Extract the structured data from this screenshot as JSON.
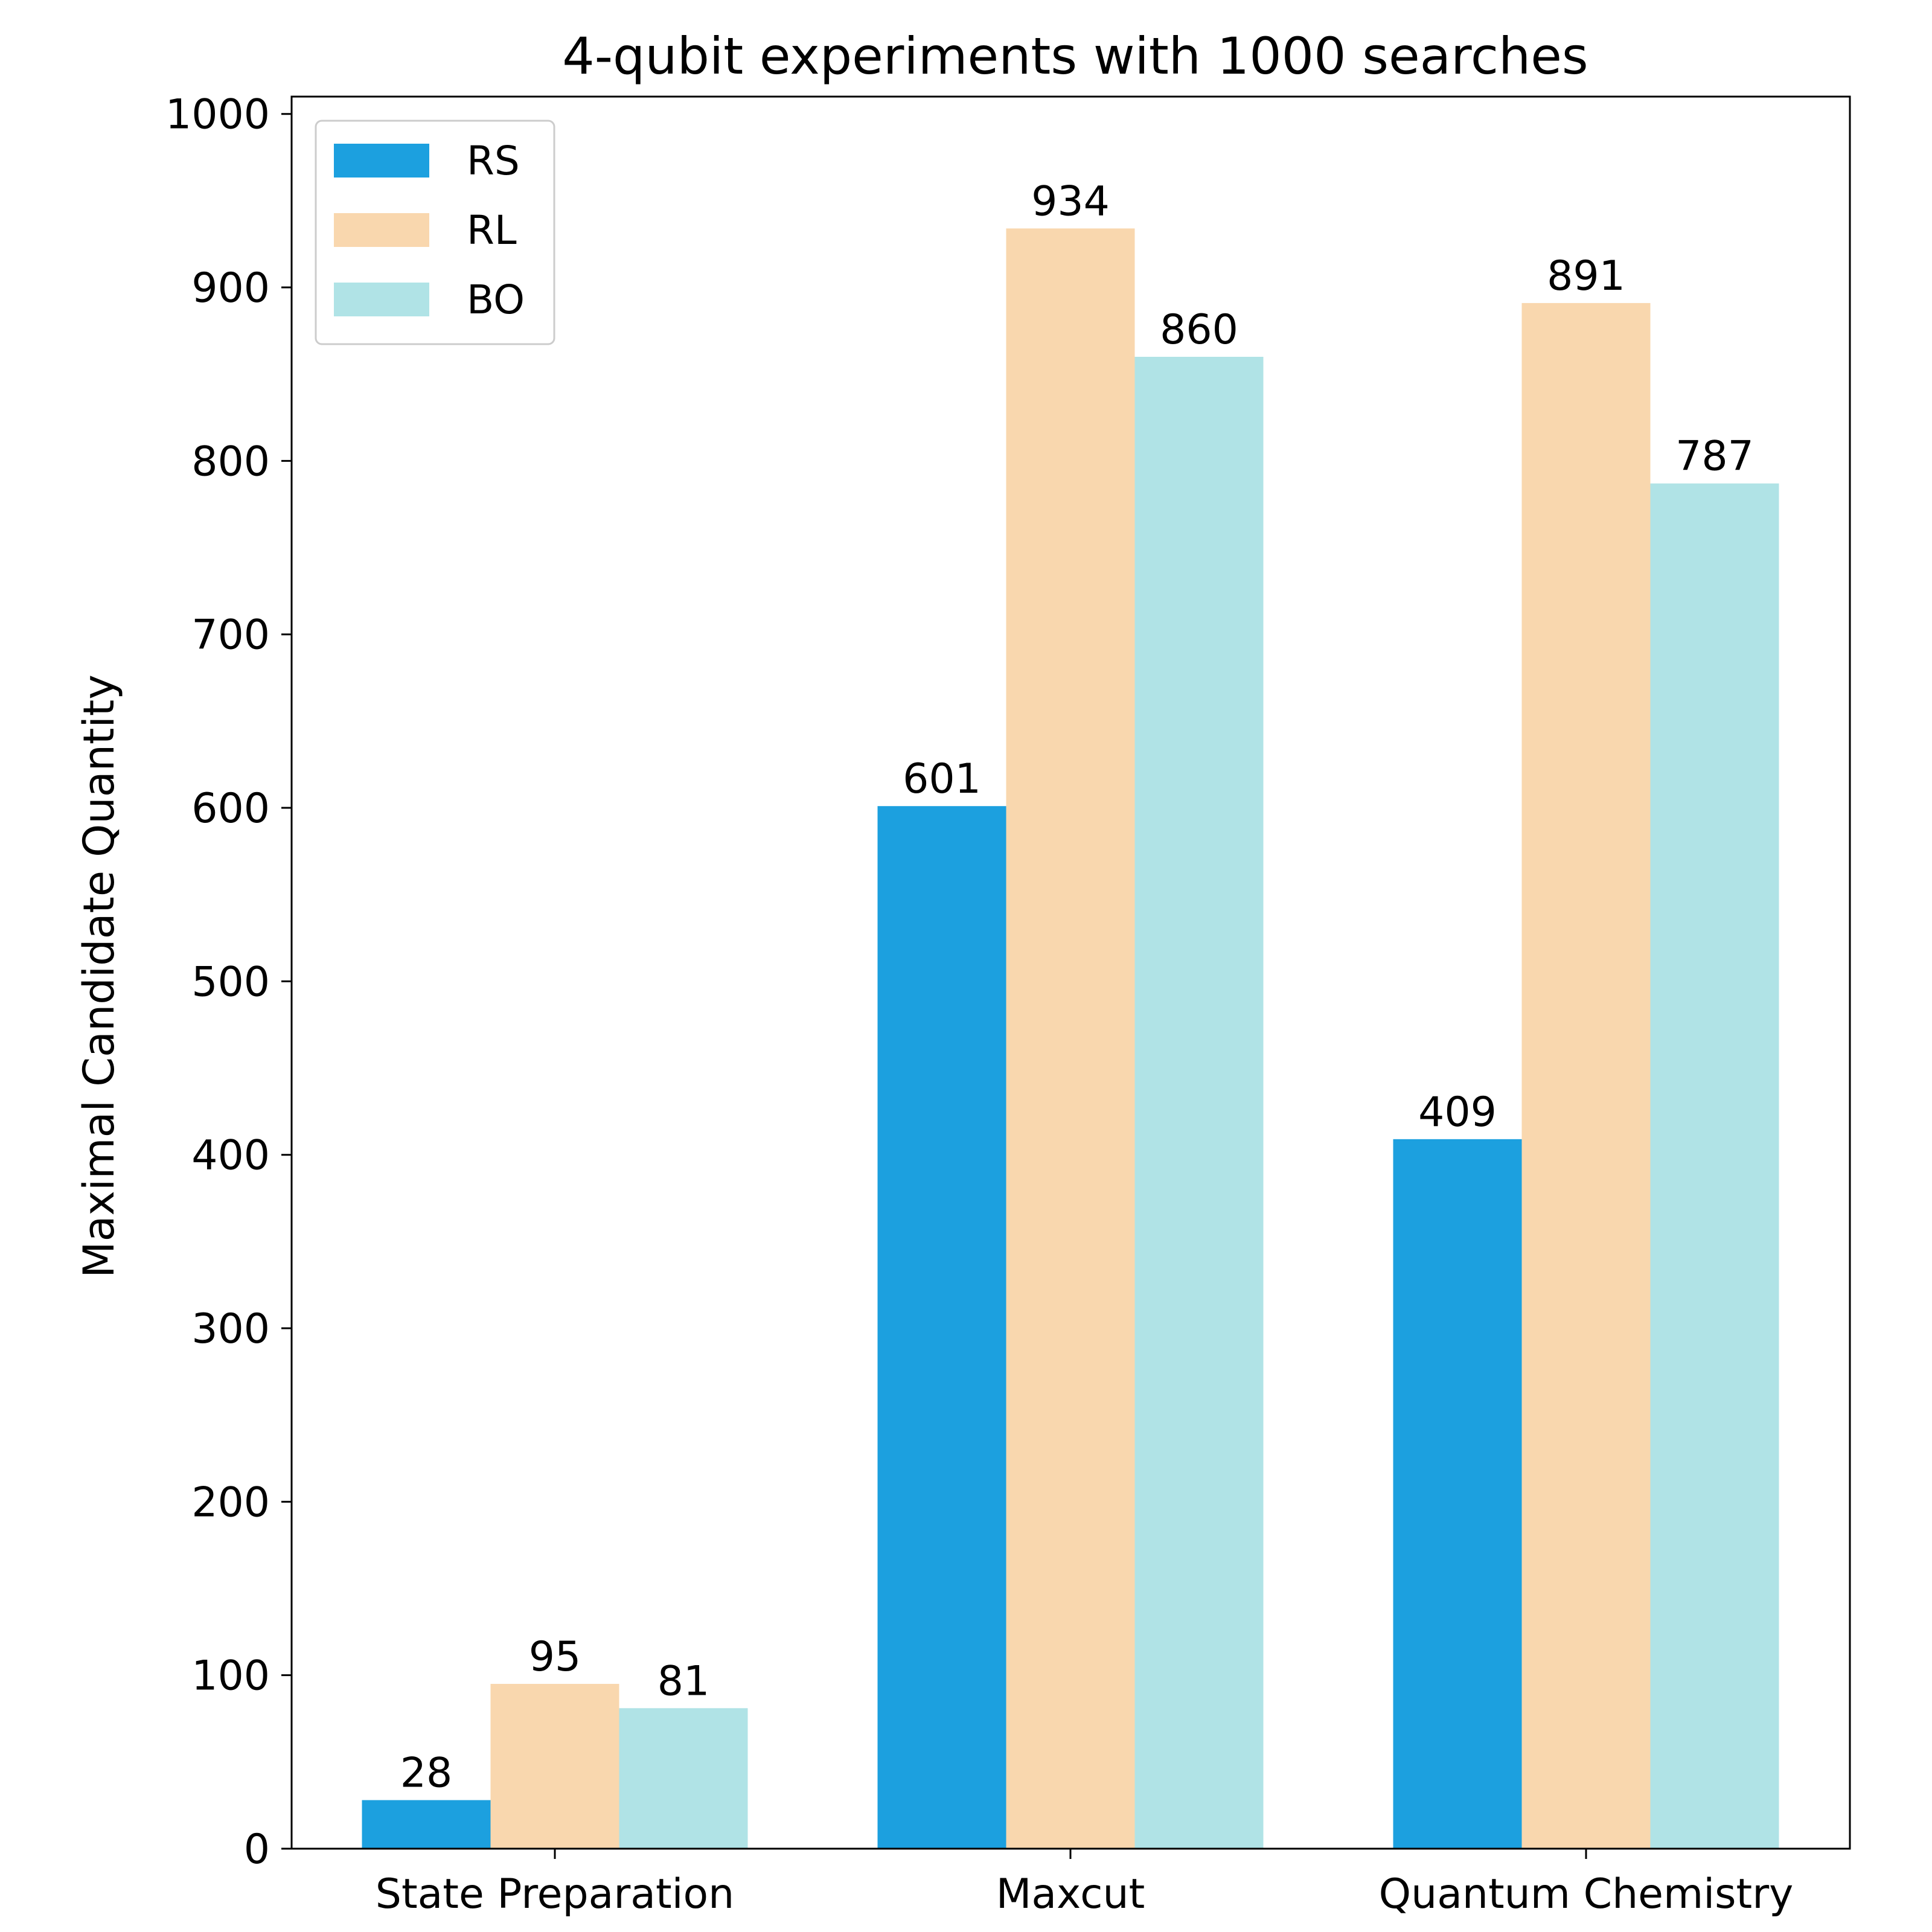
{
  "chart_data": {
    "type": "bar",
    "title": "4-qubit experiments with 1000 searches",
    "xlabel": "",
    "ylabel": "Maximal Candidate Quantity",
    "categories": [
      "State Preparation",
      "Maxcut",
      "Quantum Chemistry"
    ],
    "series": [
      {
        "name": "RS",
        "color": "#1ca0df",
        "values": [
          28,
          601,
          409
        ]
      },
      {
        "name": "RL",
        "color": "#f9d7ae",
        "values": [
          95,
          934,
          891
        ]
      },
      {
        "name": "BO",
        "color": "#b0e3e6",
        "values": [
          81,
          860,
          787
        ]
      }
    ],
    "ylim": [
      0,
      1010
    ],
    "yticks": [
      0,
      100,
      200,
      300,
      400,
      500,
      600,
      700,
      800,
      900,
      1000
    ],
    "legend_position": "upper-left",
    "grid": false,
    "data_labels": true
  }
}
